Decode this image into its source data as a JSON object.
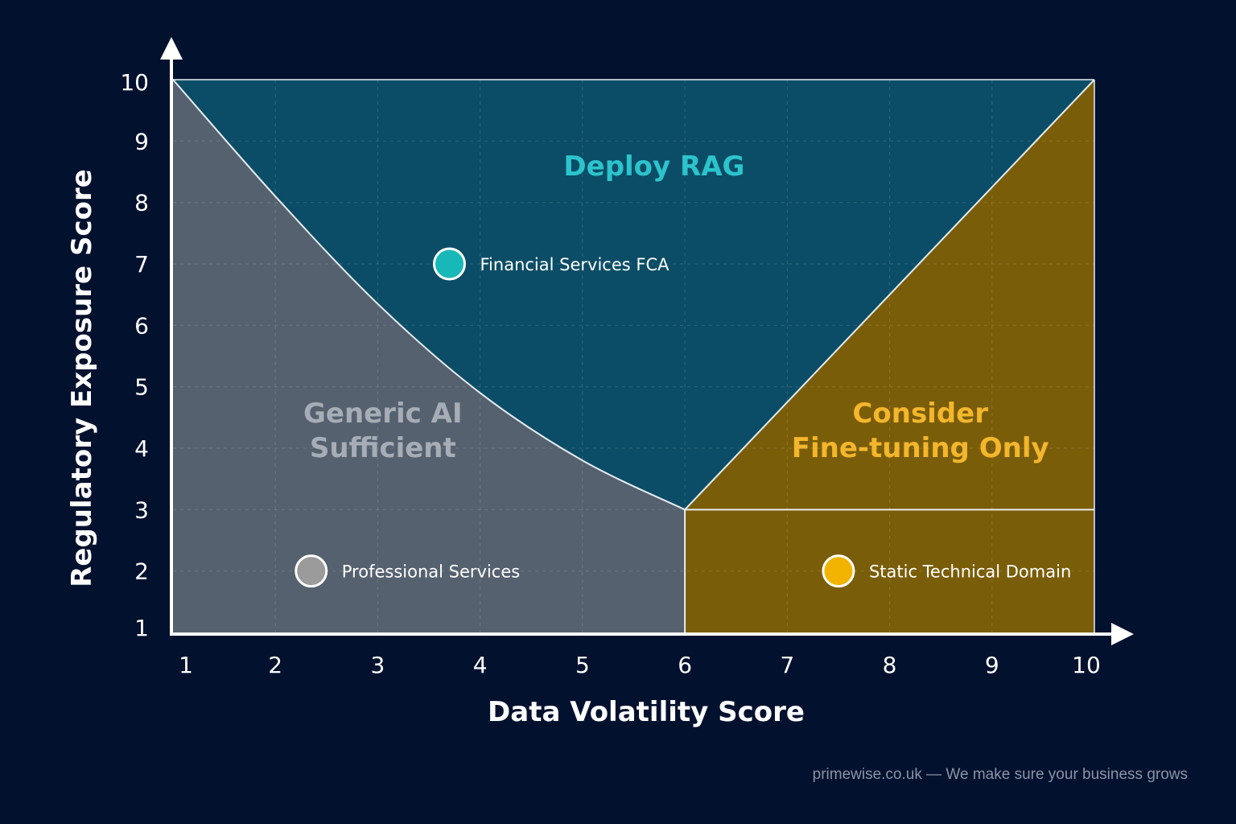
{
  "chart_data": {
    "type": "scatter",
    "xlabel": "Data Volatility Score",
    "ylabel": "Regulatory Exposure Score",
    "xlim": [
      1,
      10
    ],
    "ylim": [
      1,
      10
    ],
    "x_ticks": [
      "1",
      "2",
      "3",
      "4",
      "5",
      "6",
      "7",
      "8",
      "9",
      "10"
    ],
    "y_ticks": [
      "1",
      "2",
      "3",
      "4",
      "5",
      "6",
      "7",
      "8",
      "9",
      "10"
    ],
    "grid": true,
    "regions": [
      {
        "id": "rag",
        "label_lines": [
          "Deploy RAG"
        ],
        "color": "#0b4d66",
        "label_color": "#2cc4cc",
        "anchor": [
          5.7,
          8.6
        ]
      },
      {
        "id": "generic",
        "label_lines": [
          "Generic AI",
          "Sufficient"
        ],
        "color": "#56616f",
        "label_color": "#a7adb6",
        "anchor": [
          3.05,
          4.3
        ]
      },
      {
        "id": "finetune",
        "label_lines": [
          "Consider",
          "Fine-tuning Only"
        ],
        "color": "#7a5d08",
        "label_color": "#f3b62c",
        "anchor": [
          8.3,
          4.3
        ]
      }
    ],
    "boundaries": {
      "curve": [
        [
          1,
          10
        ],
        [
          2,
          8.1
        ],
        [
          3,
          6.35
        ],
        [
          4,
          4.9
        ],
        [
          5,
          3.8
        ],
        [
          6,
          3
        ]
      ],
      "diagonal": [
        [
          6,
          3
        ],
        [
          10,
          10
        ]
      ],
      "vertical_x": 6,
      "horizontal_y": 3
    },
    "series": [
      {
        "name": "Financial Services FCA",
        "x": 3.7,
        "y": 7.0,
        "color": "#19b8b8"
      },
      {
        "name": "Professional Services",
        "x": 2.35,
        "y": 2.0,
        "color": "#9b9b9b"
      },
      {
        "name": "Static Technical Domain",
        "x": 7.5,
        "y": 2.0,
        "color": "#f2b400"
      }
    ]
  },
  "footer": "primewise.co.uk — We make sure your business grows"
}
